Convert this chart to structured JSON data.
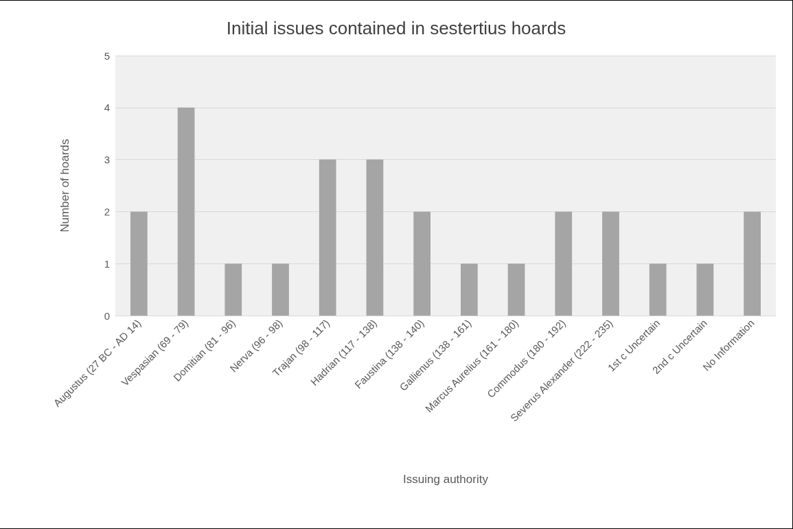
{
  "chart_data": {
    "type": "bar",
    "title": "Initial issues contained in sestertius hoards",
    "xlabel": "Issuing authority",
    "ylabel": "Number of hoards",
    "categories": [
      "Augustus (27 BC - AD 14)",
      "Vespasian (69 - 79)",
      "Domitian (81 - 96)",
      "Nerva (96 - 98)",
      "Trajan (98 - 117)",
      "Hadrian (117 - 138)",
      "Faustina (138 - 140)",
      "Gallienus (138 - 161)",
      "Marcus Aurelius (161 - 180)",
      "Commodus (180 - 192)",
      "Severus Alexander (222 - 235)",
      "1st c Uncertain",
      "2nd c Uncertain",
      "No Information"
    ],
    "values": [
      2,
      4,
      1,
      1,
      3,
      3,
      2,
      1,
      1,
      2,
      2,
      1,
      1,
      2
    ],
    "color": "#a5a5a5",
    "ylim": [
      0,
      5
    ],
    "yticks": [
      0,
      1,
      2,
      3,
      4,
      5
    ],
    "grid": "y"
  }
}
